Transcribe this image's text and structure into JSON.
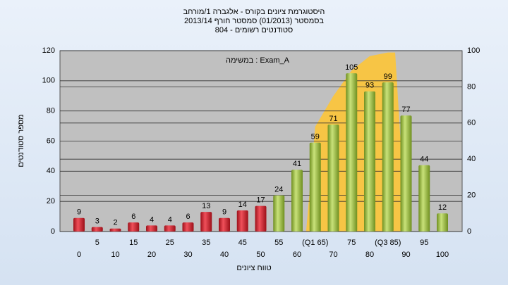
{
  "chart_data": {
    "type": "bar",
    "title": "היסטוגרמת ציונים בקורס - אלגברה 1/מורחב",
    "subtitle": "בסמסטר  (01/2013)  סמסטר חורף 2013/14",
    "subtitle2": "סטודנטים רשומים - 804",
    "annotation": "במשימה : Exam_A",
    "x_label": "טווח ציונים",
    "y_label": "מספר סטודנטים",
    "categories": [
      "0",
      "5",
      "10",
      "15",
      "20",
      "25",
      "30",
      "35",
      "40",
      "45",
      "50",
      "55",
      "60",
      "(Q1 65)",
      "70",
      "75",
      "80",
      "(Q3 85)",
      "90",
      "95",
      "100"
    ],
    "series": [
      {
        "values": [
          9,
          3,
          2,
          6,
          4,
          4,
          6,
          13,
          9,
          14,
          17,
          24,
          41,
          59,
          71,
          105,
          93,
          99,
          77,
          44,
          12
        ],
        "colors": [
          "#d9252f",
          "#d9252f",
          "#d9252f",
          "#d9252f",
          "#d9252f",
          "#d9252f",
          "#d9252f",
          "#d9252f",
          "#d9252f",
          "#d9252f",
          "#d9252f",
          "#9cc43c",
          "#9cc43c",
          "#9cc43c",
          "#9cc43c",
          "#9cc43c",
          "#9cc43c",
          "#9cc43c",
          "#9cc43c",
          "#9cc43c",
          "#9cc43c"
        ]
      },
      {
        "type": "area",
        "axis": "y2",
        "color": "#f7c545",
        "values": [
          null,
          null,
          null,
          null,
          null,
          null,
          null,
          null,
          null,
          null,
          null,
          null,
          null,
          58,
          75,
          89,
          97,
          99,
          null,
          null,
          null
        ]
      }
    ],
    "ylim": [
      0,
      120
    ],
    "yticks": [
      0,
      20,
      40,
      60,
      80,
      100,
      120
    ],
    "y2lim": [
      0,
      100
    ],
    "y2ticks": [
      0,
      20,
      40,
      60,
      80,
      100
    ],
    "grid": true
  }
}
